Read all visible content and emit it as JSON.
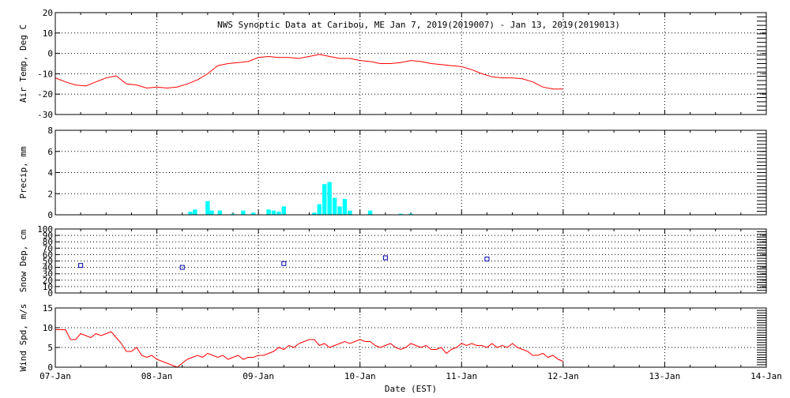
{
  "chart_data": {
    "title": "NWS Synoptic Data at Caribou, ME   Jan  7, 2019(2019007) - Jan 13, 2019(2019013)",
    "xlabel": "Date (EST)",
    "x_tick_labels": [
      "07-Jan",
      "08-Jan",
      "09-Jan",
      "10-Jan",
      "11-Jan",
      "12-Jan",
      "13-Jan",
      "14-Jan"
    ],
    "x_range_days": [
      0,
      7
    ],
    "panels": [
      {
        "name": "air-temp",
        "type": "line",
        "ylabel": "Air Temp, Deg C",
        "ylim": [
          -30,
          20
        ],
        "yticks": [
          20,
          10,
          0,
          -10,
          -20,
          -30
        ],
        "ytick_labels": [
          "20",
          "10",
          "0",
          "-10",
          "-20",
          "-30"
        ],
        "color": "#ff0000",
        "points": [
          [
            0.0,
            -12
          ],
          [
            0.1,
            -14
          ],
          [
            0.2,
            -15.5
          ],
          [
            0.3,
            -16
          ],
          [
            0.4,
            -14
          ],
          [
            0.5,
            -12
          ],
          [
            0.6,
            -11
          ],
          [
            0.7,
            -15
          ],
          [
            0.8,
            -15.5
          ],
          [
            0.9,
            -17
          ],
          [
            1.0,
            -16.5
          ],
          [
            1.1,
            -17
          ],
          [
            1.2,
            -16.5
          ],
          [
            1.3,
            -15
          ],
          [
            1.4,
            -13
          ],
          [
            1.5,
            -10
          ],
          [
            1.6,
            -6
          ],
          [
            1.7,
            -5
          ],
          [
            1.8,
            -4.5
          ],
          [
            1.9,
            -4
          ],
          [
            2.0,
            -2
          ],
          [
            2.1,
            -1.5
          ],
          [
            2.2,
            -2
          ],
          [
            2.3,
            -2
          ],
          [
            2.4,
            -2.5
          ],
          [
            2.5,
            -1.5
          ],
          [
            2.6,
            -0.5
          ],
          [
            2.7,
            -1.5
          ],
          [
            2.8,
            -2.5
          ],
          [
            2.9,
            -2.5
          ],
          [
            3.0,
            -3.5
          ],
          [
            3.1,
            -4
          ],
          [
            3.2,
            -5
          ],
          [
            3.3,
            -5
          ],
          [
            3.4,
            -4.5
          ],
          [
            3.5,
            -3.5
          ],
          [
            3.6,
            -4
          ],
          [
            3.7,
            -5
          ],
          [
            3.8,
            -5.5
          ],
          [
            3.9,
            -6
          ],
          [
            4.0,
            -6.5
          ],
          [
            4.1,
            -8
          ],
          [
            4.2,
            -10
          ],
          [
            4.3,
            -11.5
          ],
          [
            4.4,
            -12
          ],
          [
            4.5,
            -12
          ],
          [
            4.6,
            -12.5
          ],
          [
            4.7,
            -14
          ],
          [
            4.8,
            -16.5
          ],
          [
            4.9,
            -17.5
          ],
          [
            5.0,
            -17.5
          ]
        ]
      },
      {
        "name": "precip",
        "type": "bar",
        "ylabel": "Precip, mm",
        "ylim": [
          0,
          8
        ],
        "yticks": [
          0,
          2,
          4,
          6,
          8
        ],
        "ytick_labels": [
          "0",
          "2",
          "4",
          "6",
          "8"
        ],
        "color": "#00ffff",
        "bar_width_days": 0.042,
        "bars": [
          [
            1.33,
            0.3
          ],
          [
            1.375,
            0.5
          ],
          [
            1.5,
            1.3
          ],
          [
            1.54,
            0.4
          ],
          [
            1.62,
            0.4
          ],
          [
            1.75,
            0.1
          ],
          [
            1.85,
            0.4
          ],
          [
            1.95,
            0.2
          ],
          [
            2.1,
            0.5
          ],
          [
            2.15,
            0.4
          ],
          [
            2.2,
            0.3
          ],
          [
            2.25,
            0.8
          ],
          [
            2.55,
            0.2
          ],
          [
            2.6,
            1.0
          ],
          [
            2.65,
            2.9
          ],
          [
            2.7,
            3.1
          ],
          [
            2.75,
            1.6
          ],
          [
            2.8,
            0.8
          ],
          [
            2.85,
            1.5
          ],
          [
            2.9,
            0.4
          ],
          [
            3.1,
            0.4
          ],
          [
            3.4,
            0.1
          ],
          [
            3.5,
            0.1
          ]
        ]
      },
      {
        "name": "snow-depth",
        "type": "scatter",
        "ylabel": "Snow Dep, cm",
        "ylim": [
          0,
          100
        ],
        "yticks": [
          0,
          10,
          20,
          30,
          40,
          50,
          60,
          70,
          80,
          90,
          100
        ],
        "ytick_labels": [
          "0",
          "10",
          "20",
          "30",
          "40",
          "50",
          "60",
          "70",
          "80",
          "90",
          "100"
        ],
        "color": "#0000aa",
        "points": [
          [
            0.25,
            43
          ],
          [
            1.25,
            40
          ],
          [
            2.25,
            46
          ],
          [
            3.25,
            55
          ],
          [
            4.25,
            53
          ]
        ]
      },
      {
        "name": "wind-speed",
        "type": "line",
        "ylabel": "Wind Spd, m/s",
        "ylim": [
          0,
          15
        ],
        "yticks": [
          0,
          5,
          10,
          15
        ],
        "ytick_labels": [
          "0",
          "5",
          "10",
          "15"
        ],
        "color": "#ff0000",
        "points": [
          [
            0.0,
            9.5
          ],
          [
            0.1,
            9.5
          ],
          [
            0.15,
            7
          ],
          [
            0.2,
            7
          ],
          [
            0.25,
            8.5
          ],
          [
            0.3,
            8
          ],
          [
            0.35,
            7.5
          ],
          [
            0.4,
            8.5
          ],
          [
            0.45,
            8
          ],
          [
            0.5,
            8.5
          ],
          [
            0.55,
            9
          ],
          [
            0.6,
            7.5
          ],
          [
            0.65,
            6
          ],
          [
            0.7,
            4
          ],
          [
            0.75,
            4
          ],
          [
            0.8,
            5
          ],
          [
            0.85,
            3
          ],
          [
            0.9,
            2.5
          ],
          [
            0.95,
            3
          ],
          [
            1.0,
            2
          ],
          [
            1.05,
            1.5
          ],
          [
            1.1,
            1
          ],
          [
            1.15,
            0.5
          ],
          [
            1.2,
            0
          ],
          [
            1.25,
            1
          ],
          [
            1.3,
            2
          ],
          [
            1.35,
            2.5
          ],
          [
            1.4,
            3
          ],
          [
            1.45,
            2.5
          ],
          [
            1.5,
            3.5
          ],
          [
            1.55,
            3
          ],
          [
            1.6,
            2.5
          ],
          [
            1.65,
            3
          ],
          [
            1.7,
            2
          ],
          [
            1.75,
            2.5
          ],
          [
            1.8,
            3
          ],
          [
            1.85,
            2
          ],
          [
            1.9,
            2.5
          ],
          [
            1.95,
            2.5
          ],
          [
            2.0,
            3
          ],
          [
            2.05,
            3
          ],
          [
            2.1,
            3.5
          ],
          [
            2.15,
            4
          ],
          [
            2.2,
            5
          ],
          [
            2.25,
            4.5
          ],
          [
            2.3,
            5.5
          ],
          [
            2.35,
            5
          ],
          [
            2.4,
            6
          ],
          [
            2.45,
            6.5
          ],
          [
            2.5,
            7
          ],
          [
            2.55,
            7
          ],
          [
            2.6,
            5.5
          ],
          [
            2.65,
            6
          ],
          [
            2.7,
            5
          ],
          [
            2.75,
            5.5
          ],
          [
            2.8,
            6
          ],
          [
            2.85,
            6.5
          ],
          [
            2.9,
            6
          ],
          [
            2.95,
            6.5
          ],
          [
            3.0,
            7
          ],
          [
            3.05,
            6.5
          ],
          [
            3.1,
            6.5
          ],
          [
            3.15,
            5.5
          ],
          [
            3.2,
            5
          ],
          [
            3.25,
            5.5
          ],
          [
            3.3,
            6
          ],
          [
            3.35,
            5
          ],
          [
            3.4,
            4.5
          ],
          [
            3.45,
            5
          ],
          [
            3.5,
            6
          ],
          [
            3.55,
            5.5
          ],
          [
            3.6,
            5
          ],
          [
            3.65,
            5.5
          ],
          [
            3.7,
            4.5
          ],
          [
            3.75,
            4.5
          ],
          [
            3.8,
            5
          ],
          [
            3.85,
            3.5
          ],
          [
            3.9,
            4.5
          ],
          [
            3.95,
            5
          ],
          [
            4.0,
            6
          ],
          [
            4.05,
            5.5
          ],
          [
            4.1,
            6
          ],
          [
            4.15,
            5.5
          ],
          [
            4.2,
            5.5
          ],
          [
            4.25,
            5
          ],
          [
            4.3,
            6
          ],
          [
            4.35,
            5
          ],
          [
            4.4,
            5.5
          ],
          [
            4.45,
            5
          ],
          [
            4.5,
            6
          ],
          [
            4.55,
            5
          ],
          [
            4.6,
            4.5
          ],
          [
            4.65,
            4
          ],
          [
            4.7,
            3
          ],
          [
            4.75,
            3
          ],
          [
            4.8,
            3.5
          ],
          [
            4.85,
            2.5
          ],
          [
            4.9,
            3
          ],
          [
            4.95,
            2
          ],
          [
            5.0,
            1.5
          ]
        ]
      }
    ]
  }
}
